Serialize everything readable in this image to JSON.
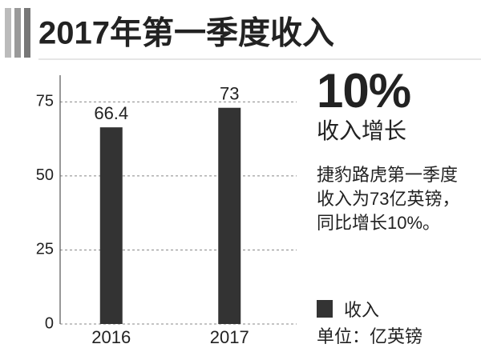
{
  "chart_data": {
    "type": "bar",
    "title": "2017年第一季度收入",
    "categories": [
      "2016",
      "2017"
    ],
    "series": [
      {
        "name": "收入",
        "color": "#333333",
        "values": [
          66.4,
          73
        ]
      }
    ],
    "ylim": [
      0,
      84
    ],
    "yticks": [
      0,
      25,
      50,
      75
    ],
    "grid": true,
    "annotations": {
      "headline": "10%",
      "subhead": "收入增长",
      "text": "捷豹路虎第一季度收入为73亿英镑，同比增长10%。",
      "unit": "单位：亿英镑"
    }
  }
}
